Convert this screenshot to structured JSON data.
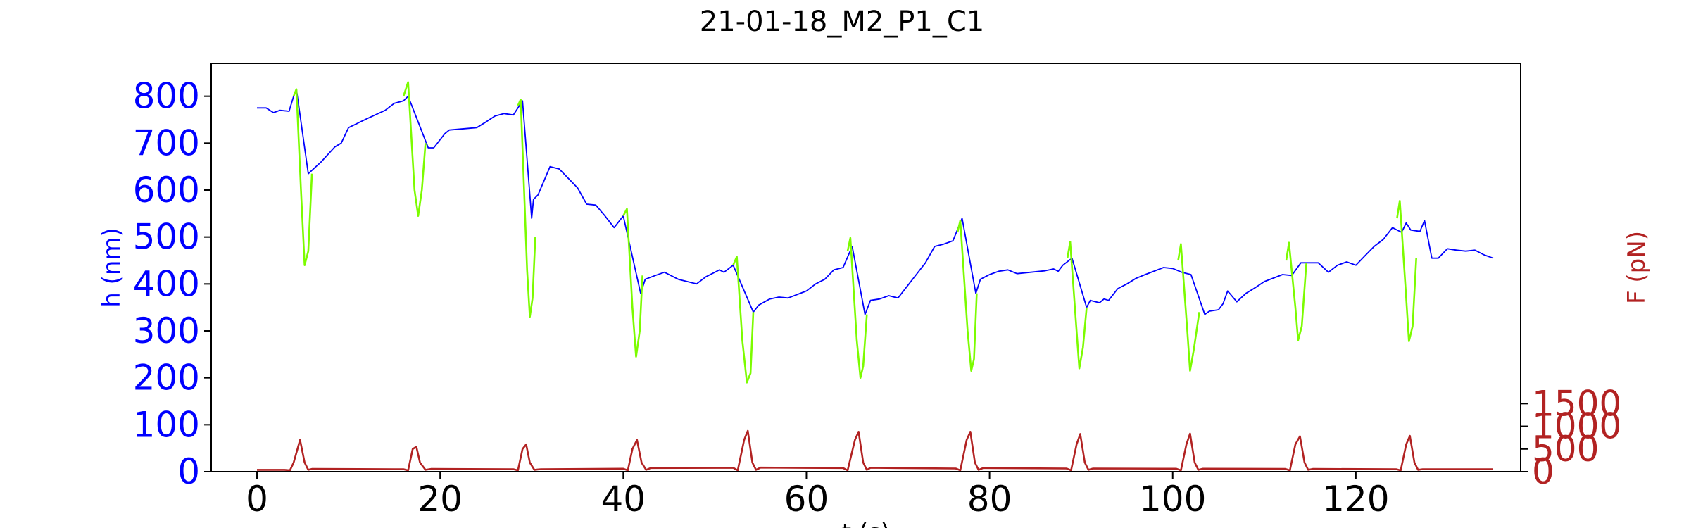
{
  "chart_data": {
    "type": "line",
    "title": "21-01-18_M2_P1_C1",
    "xlabel": "t (s)",
    "ylabel_left": "h (nm)",
    "ylabel_right": "F (pN)",
    "xlim": [
      -5,
      138
    ],
    "ylim_left": [
      0,
      870
    ],
    "ylim_right": [
      0,
      9000
    ],
    "x_ticks": [
      0,
      20,
      40,
      60,
      80,
      100,
      120
    ],
    "y_ticks_left": [
      0,
      100,
      200,
      300,
      400,
      500,
      600,
      700,
      800
    ],
    "y_ticks_right": [
      0,
      500,
      1000,
      1500
    ],
    "grid": false,
    "legend": "none",
    "colors": {
      "h_rest": "#0000ff",
      "h_press": "#7cfc00",
      "force": "#b22222"
    },
    "series": [
      {
        "axis": "left",
        "color": "#0000ff",
        "points": [
          [
            0,
            775
          ],
          [
            1,
            775
          ],
          [
            1.8,
            765
          ],
          [
            2.5,
            770
          ],
          [
            3.5,
            768
          ],
          [
            4,
            800
          ],
          [
            4.3,
            815
          ],
          [
            5.6,
            635
          ],
          [
            7,
            660
          ],
          [
            8.5,
            692
          ],
          [
            9.2,
            700
          ],
          [
            10,
            733
          ],
          [
            12,
            752
          ],
          [
            14,
            770
          ],
          [
            15,
            785
          ],
          [
            16,
            790
          ],
          [
            16.5,
            800
          ],
          [
            18.7,
            690
          ],
          [
            19.3,
            690
          ],
          [
            20.5,
            720
          ],
          [
            21,
            728
          ],
          [
            24,
            733
          ],
          [
            25,
            745
          ],
          [
            26,
            758
          ],
          [
            27,
            763
          ],
          [
            28,
            760
          ],
          [
            29,
            790
          ],
          [
            30,
            540
          ],
          [
            30.2,
            580
          ],
          [
            30.7,
            590
          ],
          [
            32,
            650
          ],
          [
            33,
            645
          ],
          [
            35,
            605
          ],
          [
            36,
            570
          ],
          [
            37,
            568
          ],
          [
            38,
            545
          ],
          [
            39,
            520
          ],
          [
            40,
            545
          ],
          [
            41.9,
            380
          ],
          [
            42.4,
            410
          ],
          [
            43.5,
            418
          ],
          [
            44.5,
            425
          ],
          [
            46,
            410
          ],
          [
            47,
            405
          ],
          [
            48,
            400
          ],
          [
            49,
            415
          ],
          [
            50,
            425
          ],
          [
            50.5,
            430
          ],
          [
            51,
            425
          ],
          [
            52,
            440
          ],
          [
            54.2,
            340
          ],
          [
            54.8,
            355
          ],
          [
            56,
            368
          ],
          [
            57,
            372
          ],
          [
            58,
            370
          ],
          [
            60,
            385
          ],
          [
            61,
            400
          ],
          [
            62,
            410
          ],
          [
            63,
            430
          ],
          [
            64,
            435
          ],
          [
            65,
            480
          ],
          [
            66.4,
            335
          ],
          [
            67,
            365
          ],
          [
            68,
            368
          ],
          [
            69,
            375
          ],
          [
            70,
            370
          ],
          [
            71,
            395
          ],
          [
            72,
            420
          ],
          [
            73,
            445
          ],
          [
            74,
            480
          ],
          [
            75,
            485
          ],
          [
            76,
            492
          ],
          [
            77,
            540
          ],
          [
            78.5,
            380
          ],
          [
            79,
            410
          ],
          [
            80,
            420
          ],
          [
            81,
            427
          ],
          [
            82,
            430
          ],
          [
            83,
            422
          ],
          [
            86,
            428
          ],
          [
            87,
            432
          ],
          [
            87.5,
            427
          ],
          [
            88,
            440
          ],
          [
            89,
            455
          ],
          [
            90.6,
            350
          ],
          [
            91,
            365
          ],
          [
            92,
            360
          ],
          [
            92.5,
            368
          ],
          [
            93,
            365
          ],
          [
            94,
            390
          ],
          [
            95,
            400
          ],
          [
            96,
            412
          ],
          [
            97,
            420
          ],
          [
            99,
            435
          ],
          [
            100,
            433
          ],
          [
            101,
            425
          ],
          [
            102,
            420
          ],
          [
            103.5,
            335
          ],
          [
            104,
            342
          ],
          [
            105,
            345
          ],
          [
            105.5,
            358
          ],
          [
            106,
            385
          ],
          [
            107,
            362
          ],
          [
            108,
            380
          ],
          [
            109,
            392
          ],
          [
            110,
            405
          ],
          [
            112,
            420
          ],
          [
            113,
            418
          ],
          [
            114,
            445
          ],
          [
            115.9,
            445
          ],
          [
            117,
            425
          ],
          [
            118,
            440
          ],
          [
            119,
            447
          ],
          [
            120,
            440
          ],
          [
            121,
            460
          ],
          [
            122,
            480
          ],
          [
            123,
            495
          ],
          [
            124,
            520
          ],
          [
            125,
            510
          ],
          [
            125.5,
            530
          ],
          [
            126,
            515
          ],
          [
            127,
            512
          ],
          [
            127.5,
            535
          ],
          [
            128.3,
            455
          ],
          [
            129,
            455
          ],
          [
            130,
            475
          ],
          [
            131,
            472
          ],
          [
            132,
            470
          ],
          [
            133,
            472
          ],
          [
            134,
            462
          ],
          [
            135,
            455
          ]
        ]
      },
      {
        "axis": "left",
        "color": "#7cfc00",
        "segments": [
          [
            [
              4,
              800
            ],
            [
              4.3,
              815
            ],
            [
              4.8,
              600
            ],
            [
              5.2,
              440
            ],
            [
              5.6,
              470
            ],
            [
              6,
              635
            ]
          ],
          [
            [
              16,
              800
            ],
            [
              16.5,
              830
            ],
            [
              17.2,
              600
            ],
            [
              17.6,
              545
            ],
            [
              18,
              600
            ],
            [
              18.4,
              700
            ]
          ],
          [
            [
              28.5,
              780
            ],
            [
              28.8,
              793
            ],
            [
              29.5,
              430
            ],
            [
              29.8,
              330
            ],
            [
              30.1,
              370
            ],
            [
              30.4,
              500
            ]
          ],
          [
            [
              40,
              545
            ],
            [
              40.4,
              560
            ],
            [
              41,
              350
            ],
            [
              41.4,
              245
            ],
            [
              41.8,
              300
            ],
            [
              42.1,
              418
            ]
          ],
          [
            [
              52,
              440
            ],
            [
              52.4,
              458
            ],
            [
              53,
              280
            ],
            [
              53.5,
              190
            ],
            [
              53.9,
              210
            ],
            [
              54.2,
              340
            ]
          ],
          [
            [
              64.5,
              470
            ],
            [
              64.8,
              498
            ],
            [
              65.5,
              280
            ],
            [
              65.9,
              200
            ],
            [
              66.2,
              225
            ],
            [
              66.6,
              335
            ]
          ],
          [
            [
              76.5,
              510
            ],
            [
              76.8,
              535
            ],
            [
              77.6,
              300
            ],
            [
              78,
              215
            ],
            [
              78.3,
              240
            ],
            [
              78.6,
              380
            ]
          ],
          [
            [
              88.5,
              455
            ],
            [
              88.8,
              490
            ],
            [
              89.5,
              300
            ],
            [
              89.8,
              220
            ],
            [
              90.2,
              265
            ],
            [
              90.6,
              350
            ]
          ],
          [
            [
              100.6,
              450
            ],
            [
              100.9,
              485
            ],
            [
              101.6,
              300
            ],
            [
              101.9,
              215
            ],
            [
              102.3,
              260
            ],
            [
              102.9,
              340
            ]
          ],
          [
            [
              112.4,
              450
            ],
            [
              112.7,
              488
            ],
            [
              113.4,
              350
            ],
            [
              113.7,
              280
            ],
            [
              114.1,
              310
            ],
            [
              114.6,
              445
            ]
          ],
          [
            [
              124.5,
              540
            ],
            [
              124.8,
              577
            ],
            [
              125.4,
              400
            ],
            [
              125.8,
              278
            ],
            [
              126.2,
              310
            ],
            [
              126.6,
              455
            ]
          ]
        ]
      },
      {
        "name": "",
        "axis": "right",
        "color": "#b22222",
        "points": [
          [
            0,
            40
          ],
          [
            3,
            40
          ],
          [
            3.6,
            30
          ],
          [
            4,
            200
          ],
          [
            4.7,
            700
          ],
          [
            5.2,
            200
          ],
          [
            5.6,
            40
          ],
          [
            6,
            60
          ],
          [
            15,
            55
          ],
          [
            16,
            55
          ],
          [
            16.5,
            30
          ],
          [
            17,
            500
          ],
          [
            17.4,
            550
          ],
          [
            17.8,
            200
          ],
          [
            18.4,
            40
          ],
          [
            19,
            60
          ],
          [
            28,
            55
          ],
          [
            28.5,
            30
          ],
          [
            29,
            500
          ],
          [
            29.4,
            600
          ],
          [
            29.8,
            200
          ],
          [
            30.3,
            40
          ],
          [
            31,
            55
          ],
          [
            40,
            65
          ],
          [
            40.5,
            30
          ],
          [
            41,
            500
          ],
          [
            41.5,
            700
          ],
          [
            42,
            200
          ],
          [
            42.5,
            40
          ],
          [
            43,
            80
          ],
          [
            52,
            85
          ],
          [
            52.5,
            30
          ],
          [
            53.2,
            700
          ],
          [
            53.6,
            900
          ],
          [
            54.1,
            200
          ],
          [
            54.5,
            40
          ],
          [
            55,
            90
          ],
          [
            64,
            80
          ],
          [
            64.5,
            30
          ],
          [
            65.3,
            700
          ],
          [
            65.7,
            880
          ],
          [
            66.2,
            200
          ],
          [
            66.6,
            40
          ],
          [
            67,
            85
          ],
          [
            76.3,
            70
          ],
          [
            76.8,
            30
          ],
          [
            77.5,
            700
          ],
          [
            77.9,
            880
          ],
          [
            78.4,
            200
          ],
          [
            78.8,
            40
          ],
          [
            79.3,
            80
          ],
          [
            88.4,
            70
          ],
          [
            88.9,
            30
          ],
          [
            89.5,
            600
          ],
          [
            89.9,
            830
          ],
          [
            90.4,
            200
          ],
          [
            90.8,
            40
          ],
          [
            91.3,
            70
          ],
          [
            100.4,
            65
          ],
          [
            100.9,
            30
          ],
          [
            101.5,
            600
          ],
          [
            101.9,
            840
          ],
          [
            102.4,
            200
          ],
          [
            102.8,
            40
          ],
          [
            103.3,
            65
          ],
          [
            112.3,
            60
          ],
          [
            112.8,
            30
          ],
          [
            113.4,
            600
          ],
          [
            113.9,
            780
          ],
          [
            114.4,
            200
          ],
          [
            114.8,
            40
          ],
          [
            115.3,
            60
          ],
          [
            124.4,
            55
          ],
          [
            124.9,
            30
          ],
          [
            125.5,
            600
          ],
          [
            125.9,
            790
          ],
          [
            126.4,
            200
          ],
          [
            126.8,
            40
          ],
          [
            127.3,
            55
          ],
          [
            135,
            55
          ]
        ]
      }
    ]
  }
}
